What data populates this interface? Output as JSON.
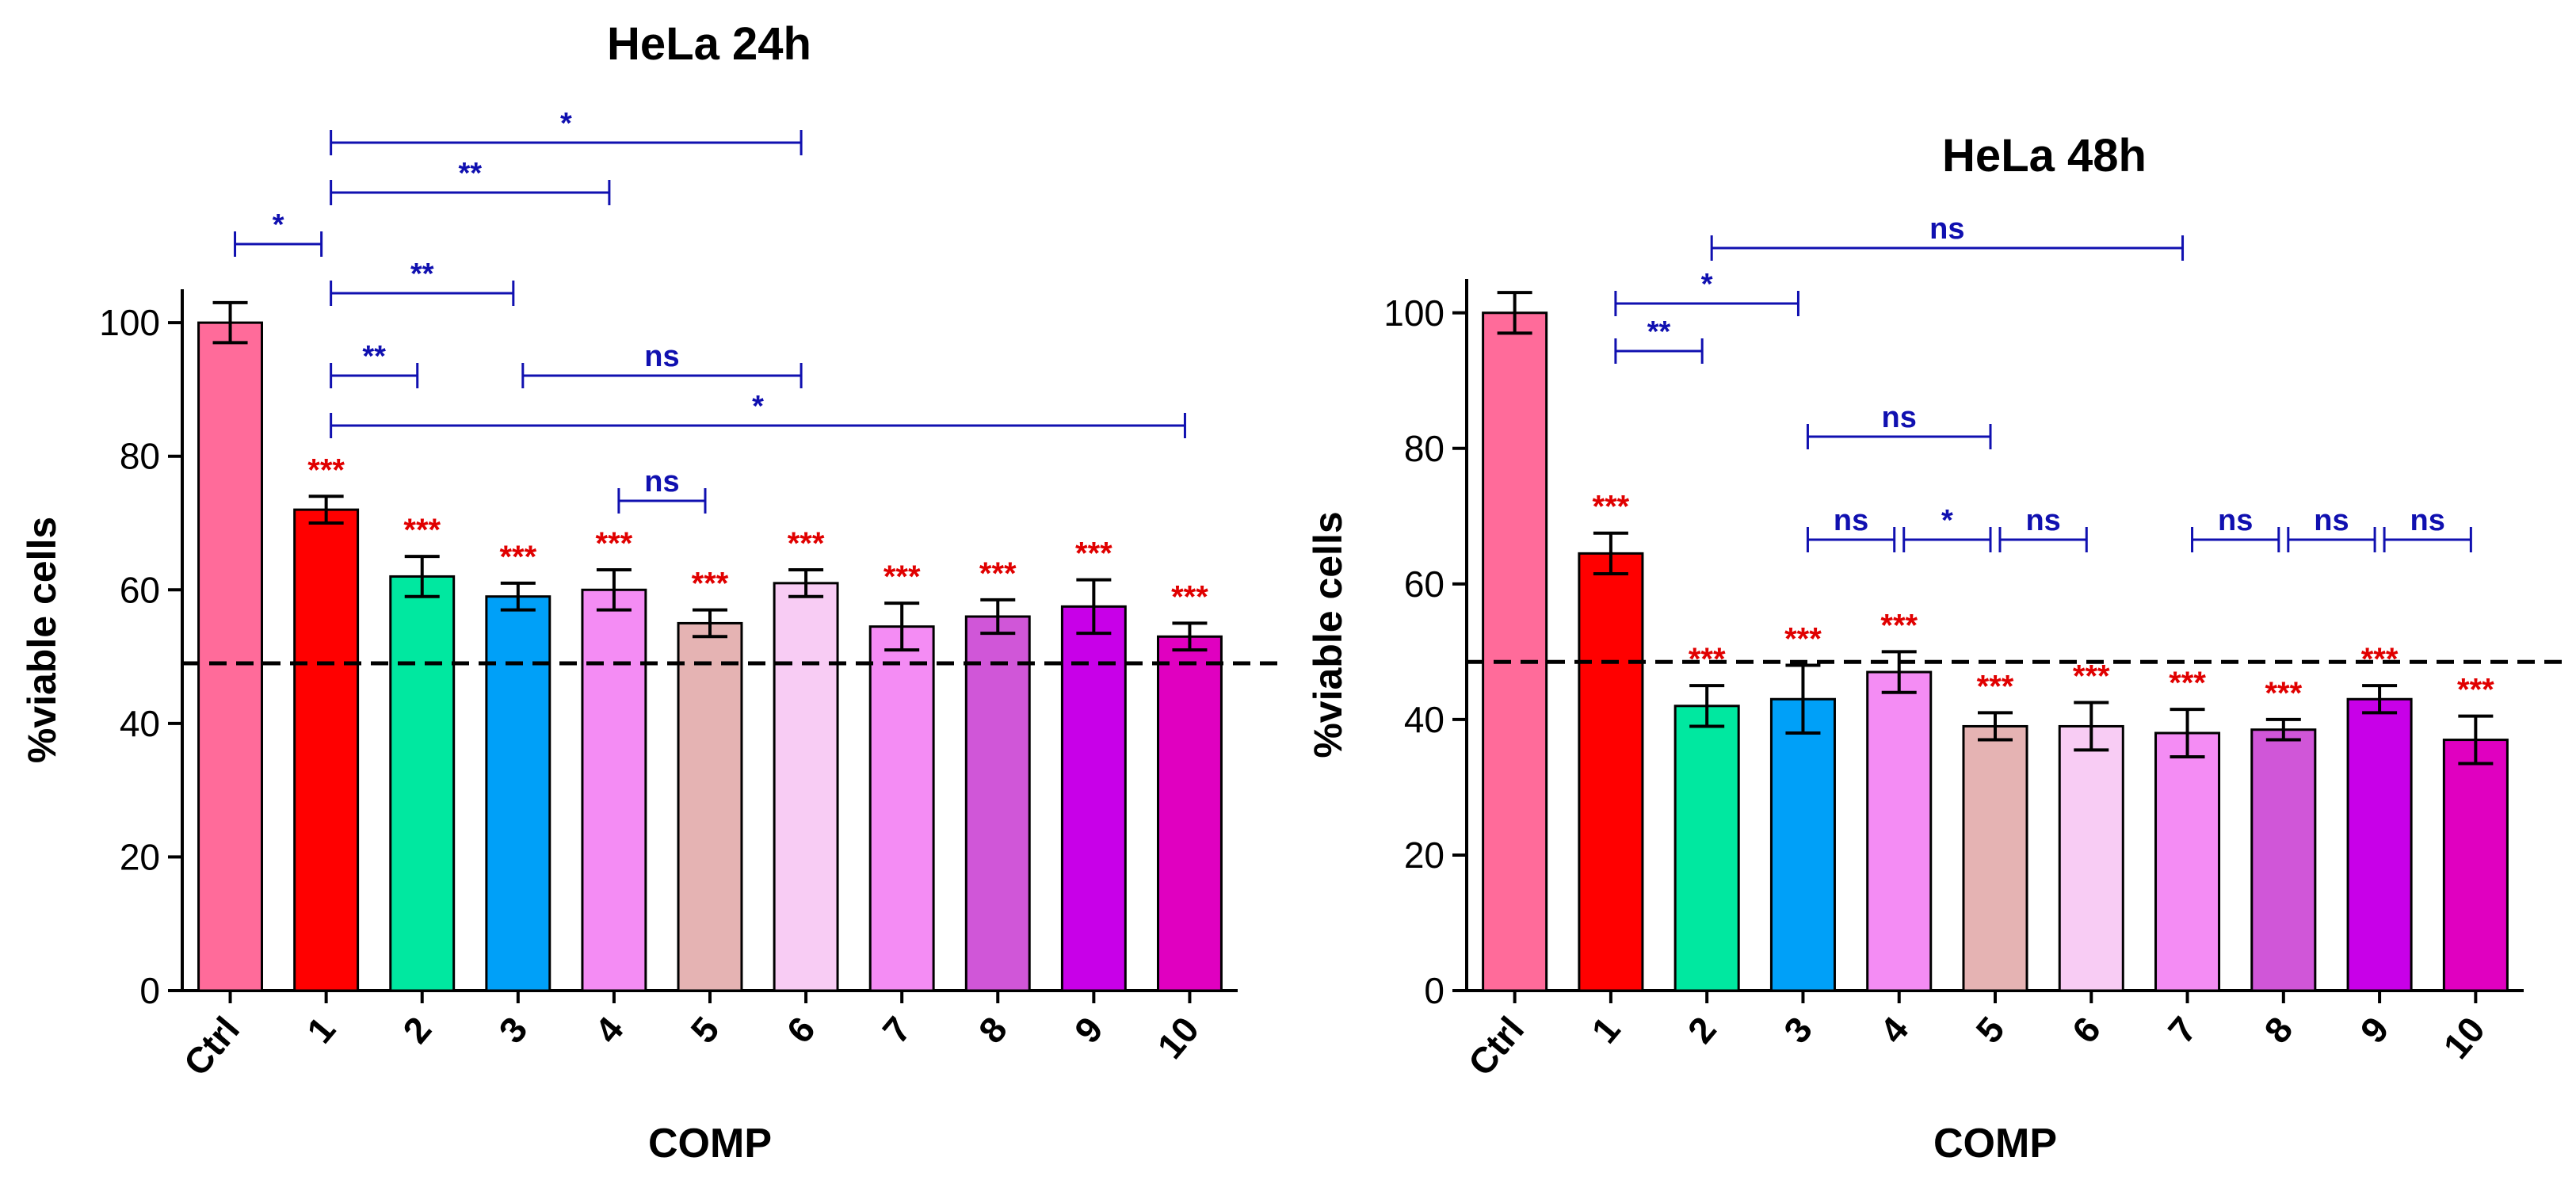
{
  "chart_data": [
    {
      "type": "bar",
      "title": "HeLa 24h",
      "xlabel": "COMP",
      "ylabel": "%viable cells",
      "ylim": [
        0,
        105
      ],
      "yticks": [
        0,
        20,
        40,
        60,
        80,
        100
      ],
      "reference_line": 49,
      "categories": [
        "Ctrl",
        "1",
        "2",
        "3",
        "4",
        "5",
        "6",
        "7",
        "8",
        "9",
        "10"
      ],
      "values": [
        100,
        72,
        62,
        59,
        60,
        55,
        61,
        54.5,
        56,
        57.5,
        53
      ],
      "errors": [
        3,
        2,
        3,
        2,
        3,
        2,
        2,
        3.5,
        2.5,
        4,
        2
      ],
      "colors": [
        "#ff6b9a",
        "#ff0000",
        "#00e8a0",
        "#00a0f8",
        "#f48cf4",
        "#e5b3b3",
        "#f8ccf4",
        "#f48cf4",
        "#d056d8",
        "#c800e8",
        "#e000c0"
      ],
      "significance": [
        "",
        "***",
        "***",
        "***",
        "***",
        "***",
        "***",
        "***",
        "***",
        "***",
        "***"
      ],
      "comparisons": [
        {
          "from": "Ctrl",
          "to": "1",
          "label": "*"
        },
        {
          "from": "1",
          "to": "6",
          "label": "*"
        },
        {
          "from": "1",
          "to": "4",
          "label": "**"
        },
        {
          "from": "1",
          "to": "3",
          "label": "**"
        },
        {
          "from": "1",
          "to": "2",
          "label": "**"
        },
        {
          "from": "3",
          "to": "6",
          "label": "ns"
        },
        {
          "from": "1",
          "to": "10",
          "label": "*"
        },
        {
          "from": "4",
          "to": "5",
          "label": "ns"
        }
      ]
    },
    {
      "type": "bar",
      "title": "HeLa 48h",
      "xlabel": "COMP",
      "ylabel": "%viable cells",
      "ylim": [
        0,
        105
      ],
      "yticks": [
        0,
        20,
        40,
        60,
        80,
        100
      ],
      "reference_line": 48.5,
      "categories": [
        "Ctrl",
        "1",
        "2",
        "3",
        "4",
        "5",
        "6",
        "7",
        "8",
        "9",
        "10"
      ],
      "values": [
        100,
        64.5,
        42,
        43,
        47,
        39,
        39,
        38,
        38.5,
        43,
        37
      ],
      "errors": [
        3,
        3,
        3,
        5,
        3,
        2,
        3.5,
        3.5,
        1.5,
        2,
        3.5
      ],
      "colors": [
        "#ff6b9a",
        "#ff0000",
        "#00e8a0",
        "#00a0f8",
        "#f48cf4",
        "#e5b3b3",
        "#f8ccf4",
        "#f48cf4",
        "#d056d8",
        "#c800e8",
        "#e000c0"
      ],
      "significance": [
        "",
        "***",
        "***",
        "***",
        "***",
        "***",
        "***",
        "***",
        "***",
        "***",
        "***"
      ],
      "comparisons": [
        {
          "from": "2",
          "to": "7",
          "label": "ns"
        },
        {
          "from": "1",
          "to": "3",
          "label": "*"
        },
        {
          "from": "1",
          "to": "2",
          "label": "**"
        },
        {
          "from": "3",
          "to": "5",
          "label": "ns"
        },
        {
          "from": "3",
          "to": "4",
          "label": "ns"
        },
        {
          "from": "4",
          "to": "5",
          "label": "*"
        },
        {
          "from": "5",
          "to": "6",
          "label": "ns"
        },
        {
          "from": "7",
          "to": "8",
          "label": "ns"
        },
        {
          "from": "8",
          "to": "9",
          "label": "ns"
        },
        {
          "from": "9",
          "to": "10",
          "label": "ns"
        }
      ]
    }
  ]
}
